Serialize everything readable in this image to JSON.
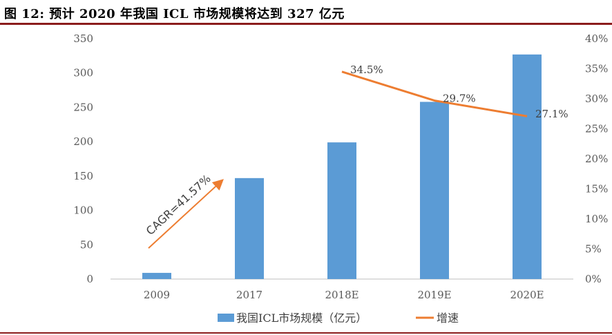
{
  "title": "图 12: 预计 2020 年我国 ICL 市场规模将达到 327 亿元",
  "chart_data": {
    "type": "bar",
    "categories": [
      "2009",
      "2017",
      "2018E",
      "2019E",
      "2020E"
    ],
    "series": [
      {
        "name": "我国ICL市场规模（亿元）",
        "type": "bar",
        "axis": "left",
        "color": "#5b9bd5",
        "values": [
          9,
          147,
          199,
          258,
          327
        ]
      },
      {
        "name": "增速",
        "type": "line",
        "axis": "right",
        "color": "#ed7d31",
        "values": [
          null,
          null,
          34.5,
          29.7,
          27.1
        ],
        "labels": [
          "",
          "",
          "34.5%",
          "29.7%",
          "27.1%"
        ]
      }
    ],
    "ylim": [
      0,
      350
    ],
    "yticks": [
      "0",
      "50",
      "100",
      "150",
      "200",
      "250",
      "300",
      "350"
    ],
    "y2lim": [
      0,
      40
    ],
    "y2ticks": [
      "0%",
      "5%",
      "10%",
      "15%",
      "20%",
      "25%",
      "30%",
      "35%",
      "40%"
    ],
    "annotation": "CAGR=41.57%",
    "annotation_color": "#ed7d31",
    "legend_position": "bottom",
    "grid": false
  }
}
